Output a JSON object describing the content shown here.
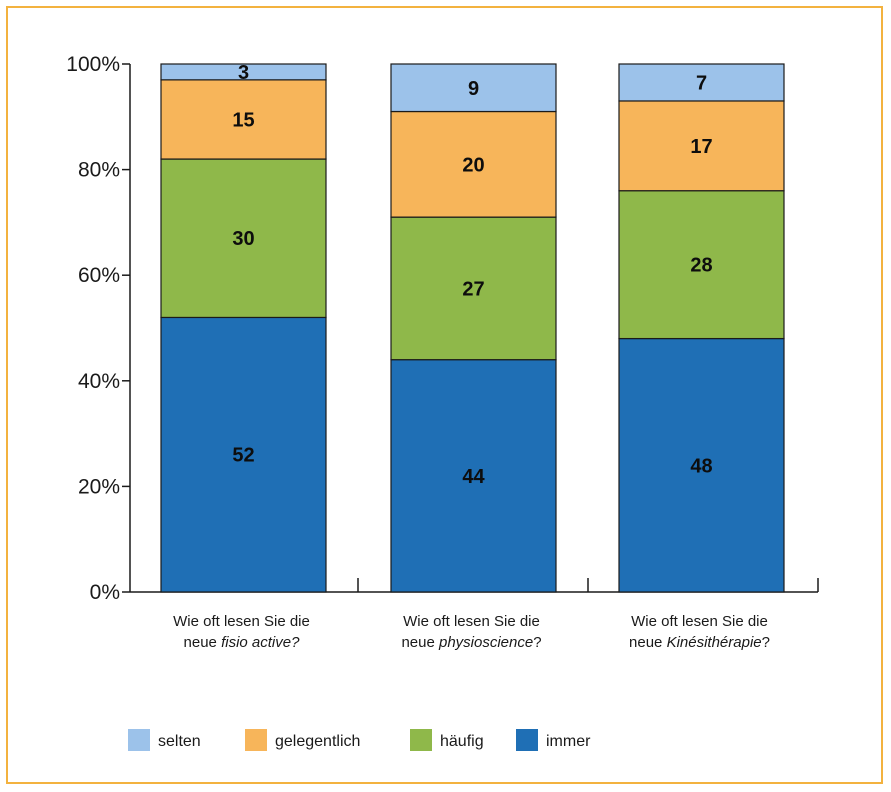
{
  "chart_data": {
    "type": "bar",
    "stacked": true,
    "categories": [
      {
        "prefix": "Wie oft lesen Sie die",
        "line2_prefix": "neue ",
        "line2_italic": "fisio active?",
        "line2_suffix": ""
      },
      {
        "prefix": "Wie oft lesen Sie die",
        "line2_prefix": "neue ",
        "line2_italic": "physioscience",
        "line2_suffix": "?"
      },
      {
        "prefix": "Wie oft lesen Sie die",
        "line2_prefix": "neue ",
        "line2_italic": "Kinésithérapie",
        "line2_suffix": "?"
      }
    ],
    "series": [
      {
        "name": "immer",
        "color": "#1f6fb5",
        "values": [
          52,
          44,
          48
        ]
      },
      {
        "name": "häufig",
        "color": "#8fb84a",
        "values": [
          30,
          27,
          28
        ]
      },
      {
        "name": "gelegentlich",
        "color": "#f7b55a",
        "values": [
          15,
          20,
          17
        ]
      },
      {
        "name": "selten",
        "color": "#9cc2ea",
        "values": [
          3,
          9,
          7
        ]
      }
    ],
    "legend_order": [
      "selten",
      "gelegentlich",
      "häufig",
      "immer"
    ],
    "legend_placement": "bottom",
    "ylim": [
      0,
      100
    ],
    "yticks": [
      "0%",
      "20%",
      "40%",
      "60%",
      "80%",
      "100%"
    ],
    "ytick_values": [
      0,
      20,
      40,
      60,
      80,
      100
    ],
    "title": "",
    "xlabel": "",
    "ylabel": ""
  }
}
